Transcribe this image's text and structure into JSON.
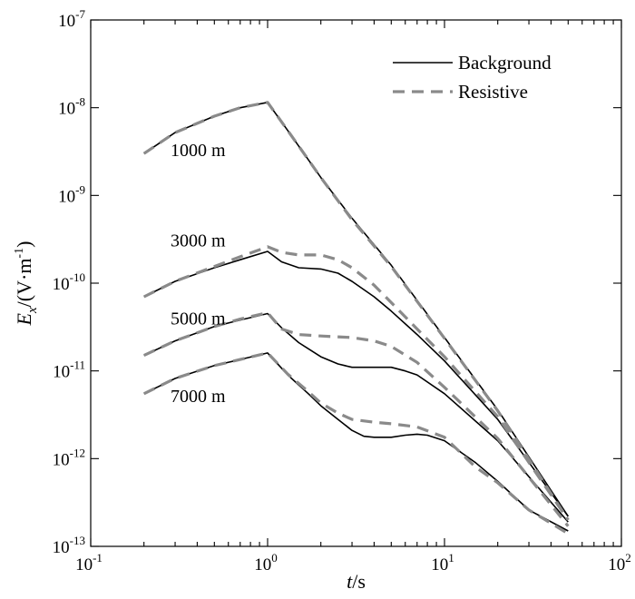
{
  "chart_data": {
    "type": "line",
    "x_scale": "log",
    "y_scale": "log",
    "xlim": [
      0.1,
      100
    ],
    "ylim": [
      1e-13,
      1e-07
    ],
    "xlabel_italic": "t",
    "xlabel_rest": "/s",
    "ylabel_italic": "E",
    "ylabel_sub": "x",
    "ylabel_rest": "/(V·m",
    "ylabel_sup": "-1",
    "ylabel_close": ")",
    "x_ticks": [
      {
        "value": 0.1,
        "base": "10",
        "exp": "-1"
      },
      {
        "value": 1,
        "base": "10",
        "exp": "0"
      },
      {
        "value": 10,
        "base": "10",
        "exp": "1"
      },
      {
        "value": 100,
        "base": "10",
        "exp": "2"
      }
    ],
    "y_ticks": [
      {
        "value": 1e-13,
        "base": "10",
        "exp": "-13"
      },
      {
        "value": 1e-12,
        "base": "10",
        "exp": "-12"
      },
      {
        "value": 1e-11,
        "base": "10",
        "exp": "-11"
      },
      {
        "value": 1e-10,
        "base": "10",
        "exp": "-10"
      },
      {
        "value": 1e-09,
        "base": "10",
        "exp": "-9"
      },
      {
        "value": 1e-08,
        "base": "10",
        "exp": "-8"
      },
      {
        "value": 1e-07,
        "base": "10",
        "exp": "-7"
      }
    ],
    "grid": false,
    "legend": {
      "position": "top-right",
      "entries": [
        {
          "label": "Background",
          "color": "#000000",
          "dash": "solid"
        },
        {
          "label": "Resistive",
          "color": "#8a8a8a",
          "dash": "dashed"
        }
      ]
    },
    "annotations": [
      {
        "text": "1000 m",
        "x": 0.3,
        "y": 3.3e-09
      },
      {
        "text": "3000 m",
        "x": 0.3,
        "y": 3.1e-10
      },
      {
        "text": "5000 m",
        "x": 0.3,
        "y": 4e-11
      },
      {
        "text": "7000 m",
        "x": 0.3,
        "y": 5.2e-12
      }
    ],
    "series": [
      {
        "name": "Background",
        "offset": "1000 m",
        "color": "#000000",
        "dash": "solid",
        "x": [
          0.2,
          0.3,
          0.5,
          0.7,
          1.0,
          1.3,
          2,
          3,
          5,
          10,
          20,
          50
        ],
        "y": [
          3e-09,
          5.2e-09,
          8e-09,
          1e-08,
          1.15e-08,
          5.5e-09,
          1.6e-09,
          5.5e-10,
          1.6e-10,
          2.4e-11,
          3.6e-12,
          2.2e-13
        ]
      },
      {
        "name": "Resistive",
        "offset": "1000 m",
        "color": "#8a8a8a",
        "dash": "dashed",
        "x": [
          0.2,
          0.3,
          0.5,
          0.7,
          1.0,
          1.3,
          2,
          3,
          5,
          10,
          20,
          50
        ],
        "y": [
          3e-09,
          5.2e-09,
          8e-09,
          1e-08,
          1.15e-08,
          5.5e-09,
          1.6e-09,
          5.3e-10,
          1.55e-10,
          2.35e-11,
          3.5e-12,
          2e-13
        ]
      },
      {
        "name": "Background",
        "offset": "3000 m",
        "color": "#000000",
        "dash": "solid",
        "x": [
          0.2,
          0.3,
          0.5,
          0.7,
          1.0,
          1.2,
          1.5,
          2,
          2.5,
          3,
          4,
          5,
          7,
          10,
          20,
          50
        ],
        "y": [
          7e-11,
          1.05e-10,
          1.5e-10,
          1.85e-10,
          2.3e-10,
          1.75e-10,
          1.5e-10,
          1.45e-10,
          1.3e-10,
          1.05e-10,
          7e-11,
          4.8e-11,
          2.6e-11,
          1.3e-11,
          2.8e-12,
          2.2e-13
        ]
      },
      {
        "name": "Resistive",
        "offset": "3000 m",
        "color": "#8a8a8a",
        "dash": "dashed",
        "x": [
          0.2,
          0.3,
          0.5,
          0.7,
          1.0,
          1.2,
          1.5,
          2,
          2.5,
          3,
          4,
          5,
          7,
          10,
          20,
          50
        ],
        "y": [
          7e-11,
          1.05e-10,
          1.55e-10,
          2e-10,
          2.6e-10,
          2.25e-10,
          2.1e-10,
          2.1e-10,
          1.85e-10,
          1.5e-10,
          9.5e-11,
          6e-11,
          3e-11,
          1.45e-11,
          3e-12,
          2e-13
        ]
      },
      {
        "name": "Background",
        "offset": "5000 m",
        "color": "#000000",
        "dash": "solid",
        "x": [
          0.2,
          0.3,
          0.5,
          0.7,
          1.0,
          1.2,
          1.5,
          2,
          2.5,
          3,
          4,
          5,
          6,
          7,
          10,
          20,
          50
        ],
        "y": [
          1.5e-11,
          2.2e-11,
          3.2e-11,
          3.8e-11,
          4.5e-11,
          3.1e-11,
          2.1e-11,
          1.45e-11,
          1.2e-11,
          1.1e-11,
          1.1e-11,
          1.1e-11,
          1e-11,
          9e-12,
          5.5e-12,
          1.6e-12,
          1.9e-13
        ]
      },
      {
        "name": "Resistive",
        "offset": "5000 m",
        "color": "#8a8a8a",
        "dash": "dashed",
        "x": [
          0.2,
          0.3,
          0.5,
          0.7,
          1.0,
          1.2,
          1.5,
          2,
          3,
          4,
          5,
          7,
          10,
          20,
          50
        ],
        "y": [
          1.5e-11,
          2.2e-11,
          3.2e-11,
          3.9e-11,
          4.6e-11,
          3e-11,
          2.6e-11,
          2.5e-11,
          2.4e-11,
          2.2e-11,
          1.9e-11,
          1.25e-11,
          6.5e-12,
          1.7e-12,
          1.7e-13
        ]
      },
      {
        "name": "Background",
        "offset": "7000 m",
        "color": "#000000",
        "dash": "solid",
        "x": [
          0.2,
          0.3,
          0.5,
          0.7,
          1.0,
          1.3,
          1.7,
          2,
          2.5,
          3,
          3.5,
          4,
          5,
          6,
          7,
          8,
          10,
          15,
          20,
          30,
          50
        ],
        "y": [
          5.5e-12,
          8.2e-12,
          1.15e-11,
          1.35e-11,
          1.6e-11,
          9e-12,
          5.5e-12,
          4e-12,
          2.8e-12,
          2.1e-12,
          1.8e-12,
          1.75e-12,
          1.75e-12,
          1.85e-12,
          1.9e-12,
          1.85e-12,
          1.6e-12,
          9e-13,
          5.5e-13,
          2.6e-13,
          1.5e-13
        ]
      },
      {
        "name": "Resistive",
        "offset": "7000 m",
        "color": "#8a8a8a",
        "dash": "dashed",
        "x": [
          0.2,
          0.3,
          0.5,
          0.7,
          1.0,
          1.3,
          1.7,
          2,
          2.5,
          3,
          4,
          5,
          7,
          10,
          15,
          20,
          30,
          50
        ],
        "y": [
          5.5e-12,
          8.2e-12,
          1.15e-11,
          1.35e-11,
          1.6e-11,
          9.2e-12,
          5.8e-12,
          4.3e-12,
          3.3e-12,
          2.8e-12,
          2.6e-12,
          2.5e-12,
          2.3e-12,
          1.75e-12,
          8e-13,
          5.3e-13,
          2.6e-13,
          1.4e-13
        ]
      }
    ]
  }
}
